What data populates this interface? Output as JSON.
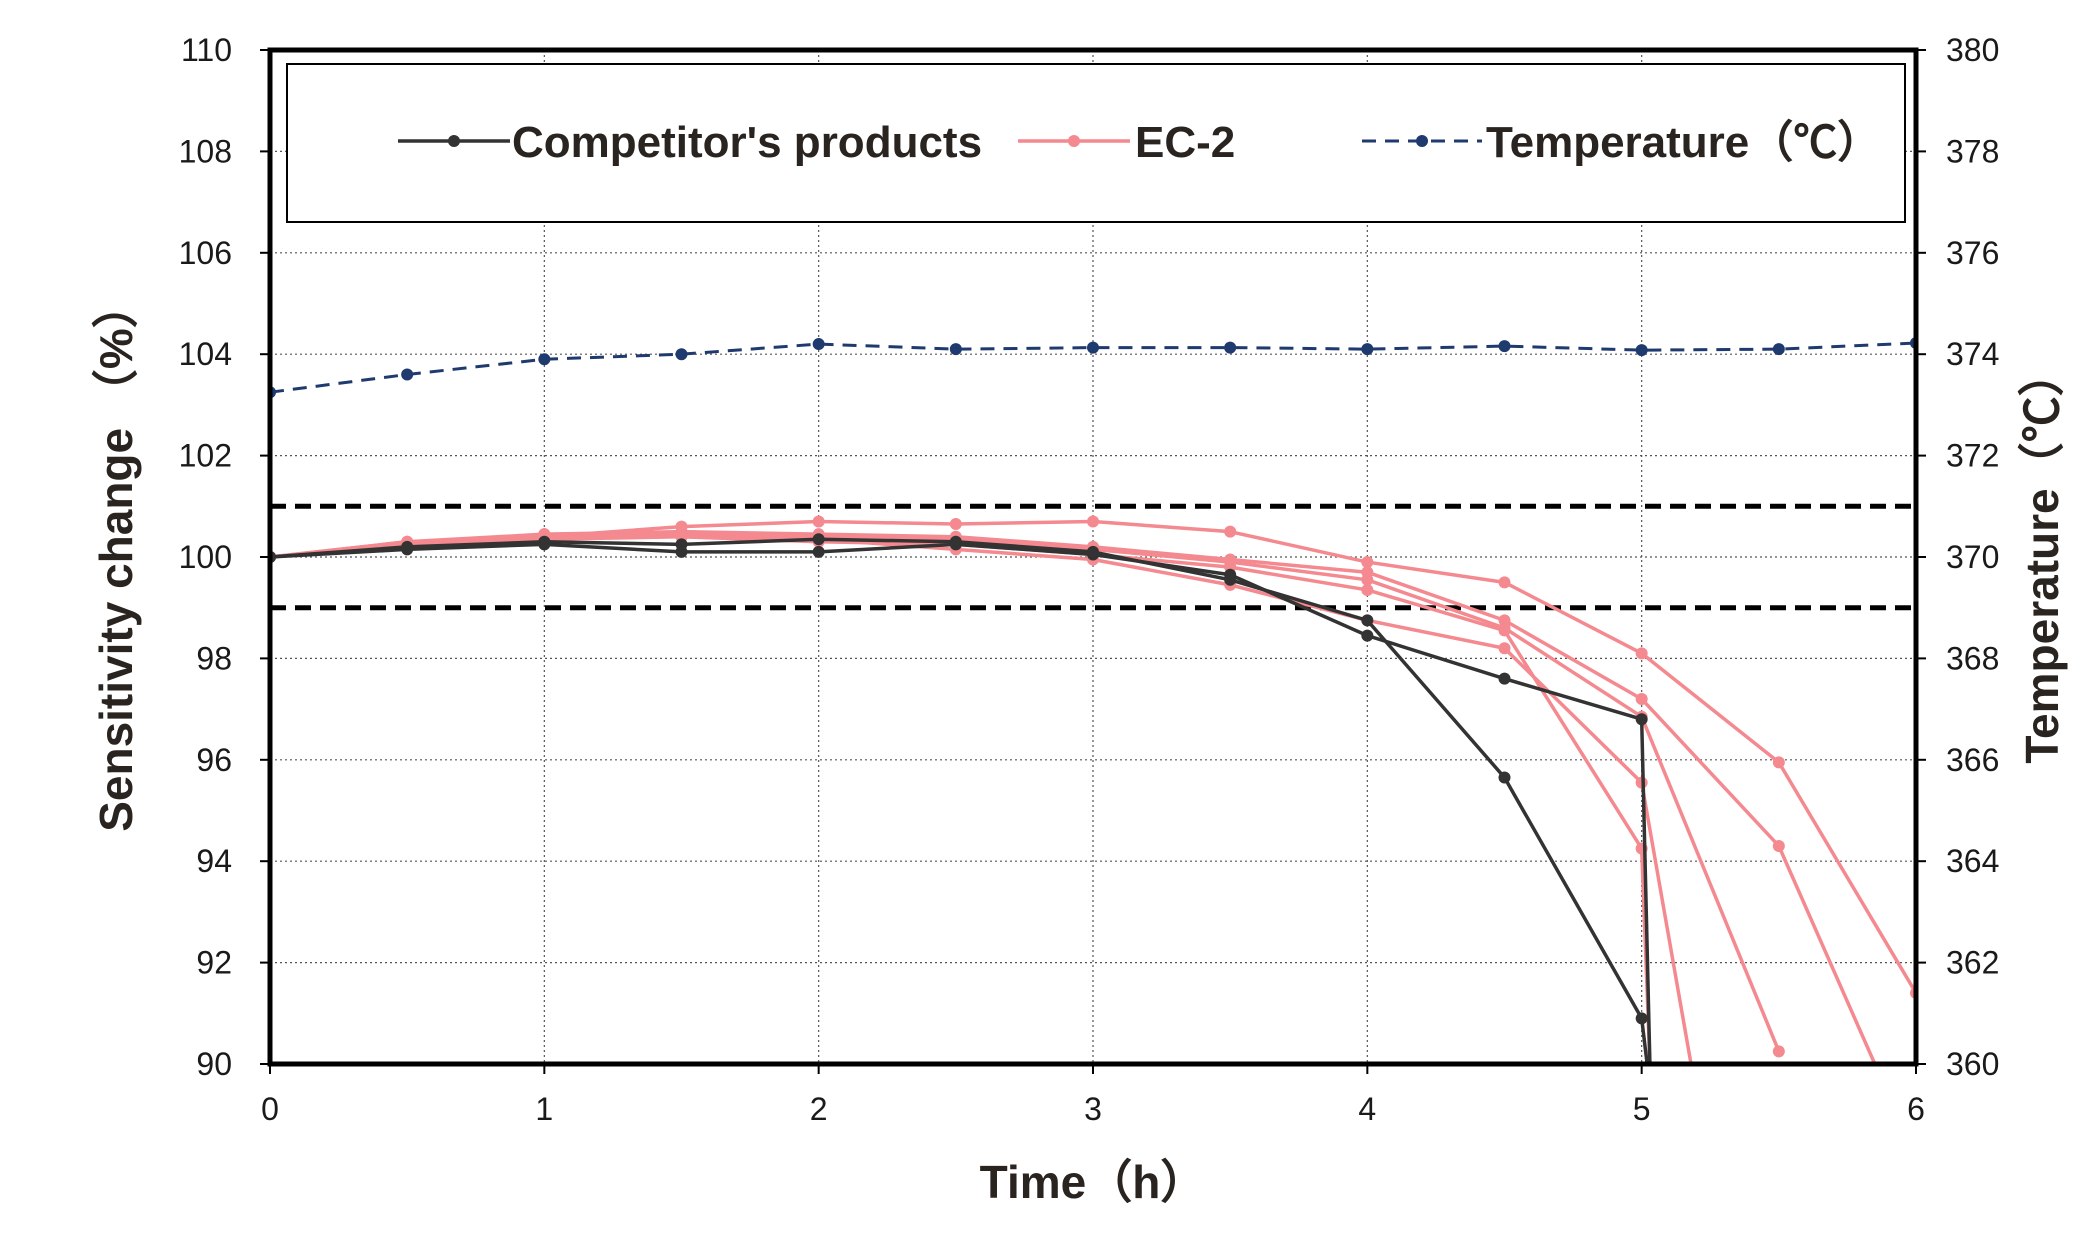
{
  "chart_data": {
    "type": "line",
    "x_axis": {
      "label": "Time（h）",
      "range": [
        0,
        6
      ],
      "ticks": [
        0,
        1,
        2,
        3,
        4,
        5,
        6
      ]
    },
    "y_axis_left": {
      "label": "Sensitivity change （%）",
      "range": [
        90,
        110
      ],
      "ticks": [
        90,
        92,
        94,
        96,
        98,
        100,
        102,
        104,
        106,
        108,
        110
      ]
    },
    "y_axis_right": {
      "label": "Temperature（℃）",
      "range": [
        360,
        380
      ],
      "ticks": [
        360,
        362,
        364,
        366,
        368,
        370,
        372,
        374,
        376,
        378,
        380
      ]
    },
    "grid": true,
    "legend": {
      "position": "top",
      "entries": [
        {
          "label": "Competitor's products",
          "color": "#333333",
          "style": "solid"
        },
        {
          "label": "EC-2",
          "color": "#f4898f",
          "style": "solid"
        },
        {
          "label": "Temperature（℃）",
          "color": "#1f3a6e",
          "style": "dashed"
        }
      ]
    },
    "tolerance_lines": [
      101,
      99
    ],
    "series": [
      {
        "name": "Competitor's products",
        "axis": "left",
        "color": "#333333",
        "x": [
          0,
          0.5,
          1,
          1.5,
          2,
          2.5,
          3,
          3.5,
          4,
          4.5,
          5,
          5.03
        ],
        "y": [
          100.0,
          100.15,
          100.25,
          100.1,
          100.1,
          100.25,
          100.05,
          99.65,
          98.45,
          97.6,
          96.8,
          90.0
        ]
      },
      {
        "name": "Competitor's products",
        "axis": "left",
        "color": "#333333",
        "x": [
          0,
          0.5,
          1,
          1.5,
          2,
          2.5,
          3,
          3.5,
          4,
          4.5,
          5,
          5.02
        ],
        "y": [
          100.0,
          100.2,
          100.3,
          100.25,
          100.35,
          100.3,
          100.1,
          99.55,
          98.75,
          95.65,
          90.9,
          90.0
        ]
      },
      {
        "name": "EC-2",
        "axis": "left",
        "color": "#f4898f",
        "x": [
          0,
          0.5,
          1,
          1.5,
          2,
          2.5,
          3,
          3.5,
          4,
          4.5,
          5,
          5.5,
          6
        ],
        "y": [
          100.0,
          100.3,
          100.4,
          100.6,
          100.7,
          100.65,
          100.7,
          100.5,
          99.9,
          99.5,
          98.1,
          95.95,
          91.4
        ]
      },
      {
        "name": "EC-2",
        "axis": "left",
        "color": "#f4898f",
        "x": [
          0,
          0.5,
          1,
          1.5,
          2,
          2.5,
          3,
          3.5,
          4,
          4.5,
          5,
          5.5,
          5.85
        ],
        "y": [
          100.0,
          100.25,
          100.45,
          100.5,
          100.45,
          100.4,
          100.2,
          99.95,
          99.7,
          98.75,
          97.2,
          94.3,
          90.0
        ]
      },
      {
        "name": "EC-2",
        "axis": "left",
        "color": "#f4898f",
        "x": [
          0,
          0.5,
          1,
          1.5,
          2,
          2.5,
          3,
          3.5,
          4,
          4.5,
          5,
          5.5
        ],
        "y": [
          100.0,
          100.25,
          100.4,
          100.45,
          100.4,
          100.35,
          100.15,
          99.9,
          99.55,
          98.6,
          96.85,
          90.25
        ]
      },
      {
        "name": "EC-2",
        "axis": "left",
        "color": "#f4898f",
        "x": [
          0,
          0.5,
          1,
          1.5,
          2,
          2.5,
          3,
          3.5,
          4,
          4.5,
          5,
          5.18
        ],
        "y": [
          100.0,
          100.3,
          100.45,
          100.4,
          100.35,
          100.15,
          99.95,
          99.45,
          98.75,
          98.2,
          95.55,
          90.0
        ]
      },
      {
        "name": "EC-2",
        "axis": "left",
        "color": "#f4898f",
        "x": [
          0,
          0.5,
          1,
          1.5,
          2,
          2.5,
          3,
          3.5,
          4,
          4.5,
          5,
          5.03
        ],
        "y": [
          100.0,
          100.25,
          100.35,
          100.4,
          100.3,
          100.25,
          100.05,
          99.8,
          99.35,
          98.55,
          94.25,
          90.0
        ]
      },
      {
        "name": "Temperature（℃）",
        "axis": "right",
        "color": "#1f3a6e",
        "x": [
          0,
          0.5,
          1,
          1.5,
          2,
          2.5,
          3,
          3.5,
          4,
          4.5,
          5,
          5.5,
          6
        ],
        "y": [
          373.25,
          373.6,
          373.9,
          374.0,
          374.2,
          374.1,
          374.13,
          374.13,
          374.1,
          374.16,
          374.08,
          374.1,
          374.22
        ]
      }
    ]
  }
}
